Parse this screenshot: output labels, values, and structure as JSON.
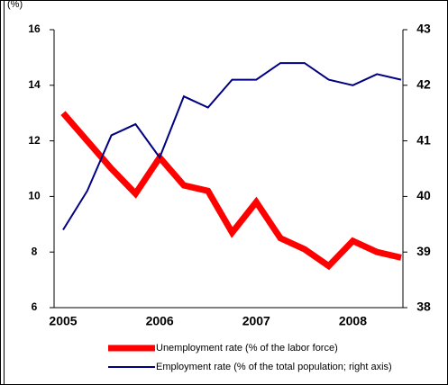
{
  "chart_data": {
    "type": "line",
    "y_unit_label": "(%)",
    "categories": [
      "2005",
      null,
      null,
      null,
      "2006",
      null,
      null,
      null,
      "2007",
      null,
      null,
      null,
      "2008",
      null,
      null
    ],
    "series": [
      {
        "name": "Unemployment rate (% of the labor force)",
        "color": "#ff0000",
        "values": [
          13,
          12.0,
          11.0,
          10.1,
          11.4,
          10.4,
          10.2,
          8.7,
          9.8,
          8.5,
          8.1,
          7.5,
          8.4,
          8.0,
          7.8
        ]
      },
      {
        "name": "Employment rate (% of the total population; right axis)",
        "color": "#000080",
        "axis": "y2",
        "values": [
          39.4,
          40.1,
          41.1,
          41.3,
          40.7,
          41.8,
          41.6,
          42.1,
          42.1,
          42.4,
          42.4,
          42.1,
          42.0,
          42.2,
          42.1
        ]
      }
    ],
    "ylim": [
      6,
      16
    ],
    "yticks": [
      6,
      8,
      10,
      12,
      14,
      16
    ],
    "y2lim": [
      38,
      43
    ],
    "y2ticks": [
      38,
      39,
      40,
      41,
      42,
      43
    ],
    "grid": false
  }
}
